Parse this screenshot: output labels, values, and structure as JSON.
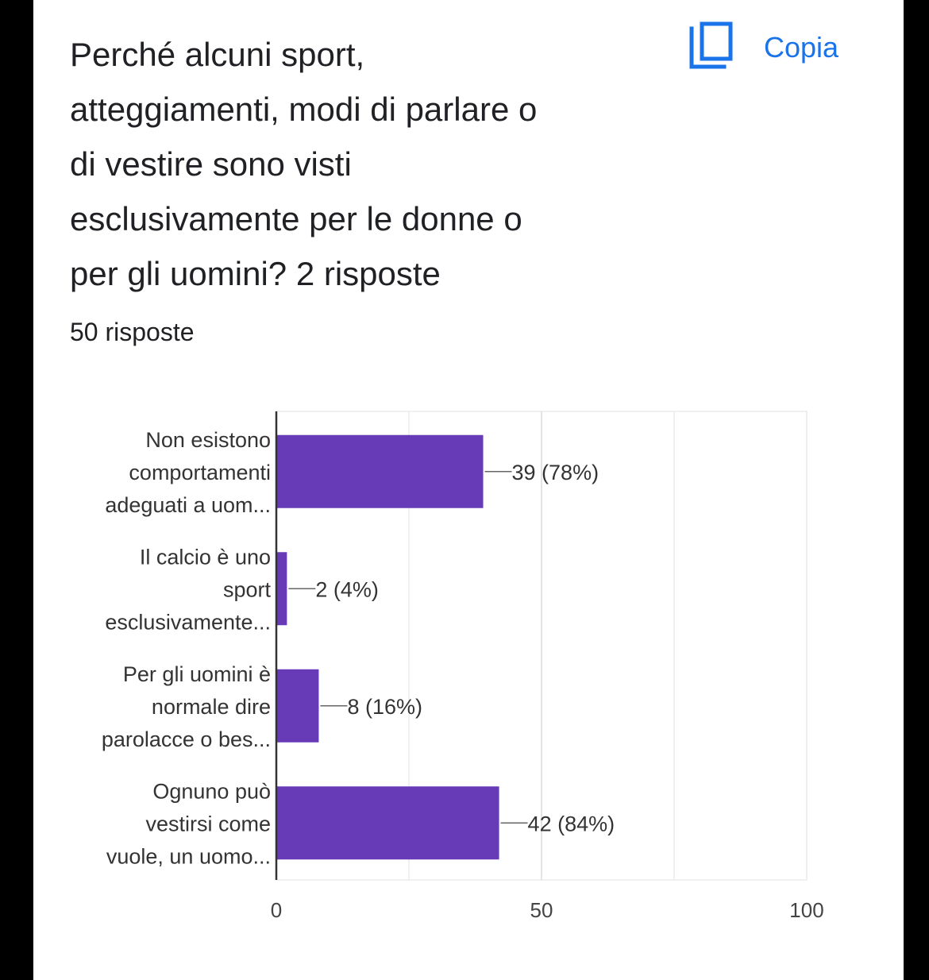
{
  "header": {
    "title_lines": [
      "Perché alcuni sport,",
      "atteggiamenti, modi di parlare o",
      "di vestire sono visti",
      "esclusivamente per le donne o",
      "per gli uomini? 2 risposte"
    ],
    "response_count": "50 risposte",
    "copy_label": "Copia",
    "copy_icon": "copy-icon",
    "accent_color": "#1a73e8"
  },
  "chart_data": {
    "type": "bar",
    "orientation": "horizontal",
    "bar_color": "#673ab7",
    "categories": [
      [
        "Non esistono",
        "comportamenti",
        "adeguati a uom..."
      ],
      [
        "Il calcio è uno",
        "sport",
        "esclusivamente..."
      ],
      [
        "Per gli uomini è",
        "normale dire",
        "parolacce o bes..."
      ],
      [
        "Ognuno può",
        "vestirsi come",
        "vuole, un uomo..."
      ]
    ],
    "values": [
      39,
      2,
      8,
      42
    ],
    "value_labels": [
      "39 (78%)",
      "2 (4%)",
      "8 (16%)",
      "42 (84%)"
    ],
    "xlim": [
      0,
      100
    ],
    "x_ticks": [
      "0",
      "50",
      "100"
    ],
    "x_tick_values": [
      0,
      50,
      100
    ],
    "grid": true
  }
}
